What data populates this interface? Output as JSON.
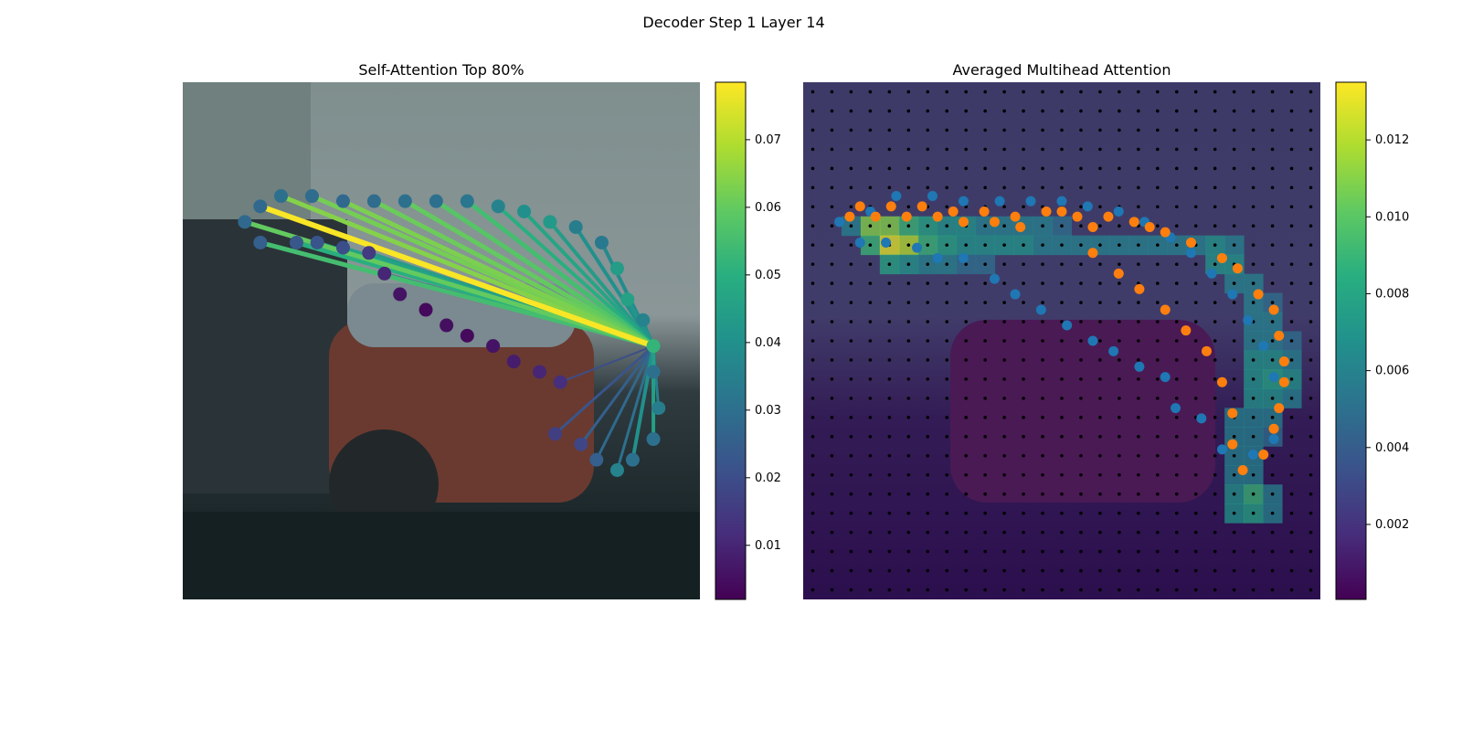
{
  "figure": {
    "title": "Decoder Step 1 Layer 14"
  },
  "chart_data": [
    {
      "type": "scatter",
      "title": "Self-Attention Top 80%",
      "description_points": "source/target points along a predicted lane curve; lines from query point to top-80% attended points",
      "query_point": [
        0.91,
        0.51
      ],
      "points": [
        {
          "x": 0.15,
          "y": 0.24,
          "v": 0.028
        },
        {
          "x": 0.19,
          "y": 0.22,
          "v": 0.03
        },
        {
          "x": 0.25,
          "y": 0.22,
          "v": 0.029
        },
        {
          "x": 0.31,
          "y": 0.23,
          "v": 0.028
        },
        {
          "x": 0.37,
          "y": 0.23,
          "v": 0.029
        },
        {
          "x": 0.43,
          "y": 0.23,
          "v": 0.03
        },
        {
          "x": 0.49,
          "y": 0.23,
          "v": 0.03
        },
        {
          "x": 0.55,
          "y": 0.23,
          "v": 0.032
        },
        {
          "x": 0.61,
          "y": 0.24,
          "v": 0.036
        },
        {
          "x": 0.66,
          "y": 0.25,
          "v": 0.04
        },
        {
          "x": 0.71,
          "y": 0.27,
          "v": 0.043
        },
        {
          "x": 0.76,
          "y": 0.28,
          "v": 0.034
        },
        {
          "x": 0.81,
          "y": 0.31,
          "v": 0.033
        },
        {
          "x": 0.84,
          "y": 0.36,
          "v": 0.044
        },
        {
          "x": 0.86,
          "y": 0.42,
          "v": 0.046
        },
        {
          "x": 0.89,
          "y": 0.46,
          "v": 0.036
        },
        {
          "x": 0.91,
          "y": 0.51,
          "v": 0.052
        },
        {
          "x": 0.91,
          "y": 0.56,
          "v": 0.03
        },
        {
          "x": 0.92,
          "y": 0.63,
          "v": 0.034
        },
        {
          "x": 0.91,
          "y": 0.69,
          "v": 0.03
        },
        {
          "x": 0.87,
          "y": 0.73,
          "v": 0.03
        },
        {
          "x": 0.84,
          "y": 0.75,
          "v": 0.036
        },
        {
          "x": 0.8,
          "y": 0.73,
          "v": 0.025
        },
        {
          "x": 0.77,
          "y": 0.7,
          "v": 0.018
        },
        {
          "x": 0.72,
          "y": 0.68,
          "v": 0.016
        },
        {
          "x": 0.73,
          "y": 0.58,
          "v": 0.012
        },
        {
          "x": 0.69,
          "y": 0.56,
          "v": 0.01
        },
        {
          "x": 0.64,
          "y": 0.54,
          "v": 0.008
        },
        {
          "x": 0.6,
          "y": 0.51,
          "v": 0.006
        },
        {
          "x": 0.55,
          "y": 0.49,
          "v": 0.004
        },
        {
          "x": 0.51,
          "y": 0.47,
          "v": 0.005
        },
        {
          "x": 0.47,
          "y": 0.44,
          "v": 0.004
        },
        {
          "x": 0.42,
          "y": 0.41,
          "v": 0.006
        },
        {
          "x": 0.39,
          "y": 0.37,
          "v": 0.01
        },
        {
          "x": 0.36,
          "y": 0.33,
          "v": 0.015
        },
        {
          "x": 0.31,
          "y": 0.32,
          "v": 0.02
        },
        {
          "x": 0.26,
          "y": 0.31,
          "v": 0.022
        },
        {
          "x": 0.22,
          "y": 0.31,
          "v": 0.023
        },
        {
          "x": 0.15,
          "y": 0.31,
          "v": 0.025
        },
        {
          "x": 0.12,
          "y": 0.27,
          "v": 0.028
        }
      ],
      "edges": [
        {
          "to": [
            0.15,
            0.24
          ],
          "v": 0.078,
          "w": 6
        },
        {
          "to": [
            0.19,
            0.22
          ],
          "v": 0.064,
          "w": 5
        },
        {
          "to": [
            0.25,
            0.22
          ],
          "v": 0.062,
          "w": 5
        },
        {
          "to": [
            0.31,
            0.23
          ],
          "v": 0.063,
          "w": 5
        },
        {
          "to": [
            0.37,
            0.23
          ],
          "v": 0.061,
          "w": 5
        },
        {
          "to": [
            0.43,
            0.23
          ],
          "v": 0.06,
          "w": 5
        },
        {
          "to": [
            0.49,
            0.23
          ],
          "v": 0.058,
          "w": 5
        },
        {
          "to": [
            0.55,
            0.23
          ],
          "v": 0.055,
          "w": 5
        },
        {
          "to": [
            0.61,
            0.24
          ],
          "v": 0.05,
          "w": 4
        },
        {
          "to": [
            0.66,
            0.25
          ],
          "v": 0.047,
          "w": 4
        },
        {
          "to": [
            0.71,
            0.27
          ],
          "v": 0.044,
          "w": 4
        },
        {
          "to": [
            0.76,
            0.28
          ],
          "v": 0.04,
          "w": 4
        },
        {
          "to": [
            0.81,
            0.31
          ],
          "v": 0.038,
          "w": 4
        },
        {
          "to": [
            0.86,
            0.42
          ],
          "v": 0.042,
          "w": 4
        },
        {
          "to": [
            0.89,
            0.46
          ],
          "v": 0.04,
          "w": 3
        },
        {
          "to": [
            0.15,
            0.31
          ],
          "v": 0.055,
          "w": 5
        },
        {
          "to": [
            0.22,
            0.31
          ],
          "v": 0.05,
          "w": 5
        },
        {
          "to": [
            0.26,
            0.31
          ],
          "v": 0.048,
          "w": 4
        },
        {
          "to": [
            0.31,
            0.32
          ],
          "v": 0.046,
          "w": 4
        },
        {
          "to": [
            0.36,
            0.33
          ],
          "v": 0.044,
          "w": 4
        },
        {
          "to": [
            0.12,
            0.27
          ],
          "v": 0.06,
          "w": 5
        },
        {
          "to": [
            0.91,
            0.56
          ],
          "v": 0.03,
          "w": 3
        },
        {
          "to": [
            0.92,
            0.63
          ],
          "v": 0.035,
          "w": 3
        },
        {
          "to": [
            0.91,
            0.69
          ],
          "v": 0.045,
          "w": 4
        },
        {
          "to": [
            0.87,
            0.73
          ],
          "v": 0.04,
          "w": 4
        },
        {
          "to": [
            0.84,
            0.75
          ],
          "v": 0.03,
          "w": 3
        },
        {
          "to": [
            0.8,
            0.73
          ],
          "v": 0.028,
          "w": 3
        },
        {
          "to": [
            0.77,
            0.7
          ],
          "v": 0.025,
          "w": 3
        },
        {
          "to": [
            0.72,
            0.68
          ],
          "v": 0.022,
          "w": 3
        },
        {
          "to": [
            0.73,
            0.58
          ],
          "v": 0.02,
          "w": 2
        },
        {
          "to": [
            0.39,
            0.37
          ],
          "v": 0.03,
          "w": 3
        }
      ],
      "colorbar": {
        "range": [
          0.002,
          0.0785
        ],
        "ticks": [
          0.01,
          0.02,
          0.03,
          0.04,
          0.05,
          0.06,
          0.07
        ],
        "tick_labels": [
          "0.01",
          "0.02",
          "0.03",
          "0.04",
          "0.05",
          "0.06",
          "0.07"
        ]
      }
    },
    {
      "type": "heatmap",
      "title": "Averaged Multihead Attention",
      "grid": [
        27,
        27
      ],
      "heat_cells": [
        {
          "r": 7,
          "c": 2,
          "v": 0.006
        },
        {
          "r": 7,
          "c": 3,
          "v": 0.011
        },
        {
          "r": 7,
          "c": 4,
          "v": 0.011
        },
        {
          "r": 7,
          "c": 5,
          "v": 0.009
        },
        {
          "r": 7,
          "c": 6,
          "v": 0.008
        },
        {
          "r": 7,
          "c": 7,
          "v": 0.007
        },
        {
          "r": 7,
          "c": 8,
          "v": 0.007
        },
        {
          "r": 7,
          "c": 9,
          "v": 0.006
        },
        {
          "r": 7,
          "c": 10,
          "v": 0.006
        },
        {
          "r": 7,
          "c": 11,
          "v": 0.006
        },
        {
          "r": 7,
          "c": 12,
          "v": 0.006
        },
        {
          "r": 7,
          "c": 13,
          "v": 0.005
        },
        {
          "r": 8,
          "c": 3,
          "v": 0.009
        },
        {
          "r": 8,
          "c": 4,
          "v": 0.013
        },
        {
          "r": 8,
          "c": 5,
          "v": 0.012
        },
        {
          "r": 8,
          "c": 6,
          "v": 0.009
        },
        {
          "r": 8,
          "c": 7,
          "v": 0.008
        },
        {
          "r": 8,
          "c": 8,
          "v": 0.007
        },
        {
          "r": 8,
          "c": 9,
          "v": 0.007
        },
        {
          "r": 8,
          "c": 10,
          "v": 0.007
        },
        {
          "r": 8,
          "c": 11,
          "v": 0.007
        },
        {
          "r": 8,
          "c": 12,
          "v": 0.006
        },
        {
          "r": 8,
          "c": 13,
          "v": 0.006
        },
        {
          "r": 8,
          "c": 14,
          "v": 0.006
        },
        {
          "r": 8,
          "c": 15,
          "v": 0.006
        },
        {
          "r": 8,
          "c": 16,
          "v": 0.006
        },
        {
          "r": 8,
          "c": 17,
          "v": 0.006
        },
        {
          "r": 8,
          "c": 18,
          "v": 0.006
        },
        {
          "r": 8,
          "c": 19,
          "v": 0.006
        },
        {
          "r": 8,
          "c": 20,
          "v": 0.006
        },
        {
          "r": 8,
          "c": 21,
          "v": 0.007
        },
        {
          "r": 8,
          "c": 22,
          "v": 0.006
        },
        {
          "r": 9,
          "c": 4,
          "v": 0.008
        },
        {
          "r": 9,
          "c": 5,
          "v": 0.007
        },
        {
          "r": 9,
          "c": 6,
          "v": 0.006
        },
        {
          "r": 9,
          "c": 7,
          "v": 0.006
        },
        {
          "r": 9,
          "c": 8,
          "v": 0.005
        },
        {
          "r": 9,
          "c": 9,
          "v": 0.005
        },
        {
          "r": 9,
          "c": 21,
          "v": 0.007
        },
        {
          "r": 9,
          "c": 22,
          "v": 0.007
        },
        {
          "r": 10,
          "c": 22,
          "v": 0.006
        },
        {
          "r": 10,
          "c": 23,
          "v": 0.006
        },
        {
          "r": 11,
          "c": 23,
          "v": 0.006
        },
        {
          "r": 11,
          "c": 24,
          "v": 0.005
        },
        {
          "r": 12,
          "c": 23,
          "v": 0.006
        },
        {
          "r": 12,
          "c": 24,
          "v": 0.006
        },
        {
          "r": 13,
          "c": 23,
          "v": 0.006
        },
        {
          "r": 13,
          "c": 24,
          "v": 0.006
        },
        {
          "r": 13,
          "c": 25,
          "v": 0.005
        },
        {
          "r": 14,
          "c": 23,
          "v": 0.007
        },
        {
          "r": 14,
          "c": 24,
          "v": 0.007
        },
        {
          "r": 14,
          "c": 25,
          "v": 0.006
        },
        {
          "r": 15,
          "c": 23,
          "v": 0.007
        },
        {
          "r": 15,
          "c": 24,
          "v": 0.008
        },
        {
          "r": 15,
          "c": 25,
          "v": 0.007
        },
        {
          "r": 16,
          "c": 23,
          "v": 0.007
        },
        {
          "r": 16,
          "c": 24,
          "v": 0.007
        },
        {
          "r": 16,
          "c": 25,
          "v": 0.006
        },
        {
          "r": 17,
          "c": 22,
          "v": 0.006
        },
        {
          "r": 17,
          "c": 23,
          "v": 0.006
        },
        {
          "r": 17,
          "c": 24,
          "v": 0.006
        },
        {
          "r": 18,
          "c": 22,
          "v": 0.006
        },
        {
          "r": 18,
          "c": 23,
          "v": 0.006
        },
        {
          "r": 18,
          "c": 24,
          "v": 0.005
        },
        {
          "r": 19,
          "c": 22,
          "v": 0.006
        },
        {
          "r": 19,
          "c": 23,
          "v": 0.006
        },
        {
          "r": 20,
          "c": 22,
          "v": 0.006
        },
        {
          "r": 20,
          "c": 23,
          "v": 0.006
        },
        {
          "r": 21,
          "c": 22,
          "v": 0.007
        },
        {
          "r": 21,
          "c": 23,
          "v": 0.009
        },
        {
          "r": 21,
          "c": 24,
          "v": 0.006
        },
        {
          "r": 22,
          "c": 22,
          "v": 0.007
        },
        {
          "r": 22,
          "c": 23,
          "v": 0.008
        },
        {
          "r": 22,
          "c": 24,
          "v": 0.006
        }
      ],
      "blue_points": [
        [
          0.13,
          0.25
        ],
        [
          0.18,
          0.22
        ],
        [
          0.25,
          0.22
        ],
        [
          0.31,
          0.23
        ],
        [
          0.38,
          0.23
        ],
        [
          0.44,
          0.23
        ],
        [
          0.5,
          0.23
        ],
        [
          0.55,
          0.24
        ],
        [
          0.61,
          0.25
        ],
        [
          0.66,
          0.27
        ],
        [
          0.71,
          0.3
        ],
        [
          0.75,
          0.33
        ],
        [
          0.79,
          0.37
        ],
        [
          0.83,
          0.41
        ],
        [
          0.86,
          0.46
        ],
        [
          0.89,
          0.51
        ],
        [
          0.91,
          0.57
        ],
        [
          0.92,
          0.63
        ],
        [
          0.91,
          0.69
        ],
        [
          0.87,
          0.72
        ],
        [
          0.81,
          0.71
        ],
        [
          0.77,
          0.65
        ],
        [
          0.72,
          0.63
        ],
        [
          0.7,
          0.57
        ],
        [
          0.65,
          0.55
        ],
        [
          0.6,
          0.52
        ],
        [
          0.56,
          0.5
        ],
        [
          0.51,
          0.47
        ],
        [
          0.46,
          0.44
        ],
        [
          0.41,
          0.41
        ],
        [
          0.37,
          0.38
        ],
        [
          0.31,
          0.34
        ],
        [
          0.26,
          0.34
        ],
        [
          0.22,
          0.32
        ],
        [
          0.16,
          0.31
        ],
        [
          0.11,
          0.31
        ],
        [
          0.07,
          0.27
        ]
      ],
      "orange_points": [
        [
          0.09,
          0.26
        ],
        [
          0.11,
          0.24
        ],
        [
          0.14,
          0.26
        ],
        [
          0.17,
          0.24
        ],
        [
          0.2,
          0.26
        ],
        [
          0.23,
          0.24
        ],
        [
          0.26,
          0.26
        ],
        [
          0.29,
          0.25
        ],
        [
          0.31,
          0.27
        ],
        [
          0.35,
          0.25
        ],
        [
          0.37,
          0.27
        ],
        [
          0.41,
          0.26
        ],
        [
          0.42,
          0.28
        ],
        [
          0.47,
          0.25
        ],
        [
          0.5,
          0.25
        ],
        [
          0.53,
          0.26
        ],
        [
          0.56,
          0.28
        ],
        [
          0.59,
          0.26
        ],
        [
          0.64,
          0.27
        ],
        [
          0.67,
          0.28
        ],
        [
          0.7,
          0.29
        ],
        [
          0.75,
          0.31
        ],
        [
          0.81,
          0.34
        ],
        [
          0.84,
          0.36
        ],
        [
          0.88,
          0.41
        ],
        [
          0.91,
          0.44
        ],
        [
          0.92,
          0.49
        ],
        [
          0.93,
          0.54
        ],
        [
          0.93,
          0.58
        ],
        [
          0.92,
          0.63
        ],
        [
          0.91,
          0.67
        ],
        [
          0.89,
          0.72
        ],
        [
          0.85,
          0.75
        ],
        [
          0.83,
          0.7
        ],
        [
          0.83,
          0.64
        ],
        [
          0.81,
          0.58
        ],
        [
          0.78,
          0.52
        ],
        [
          0.74,
          0.48
        ],
        [
          0.7,
          0.44
        ],
        [
          0.65,
          0.4
        ],
        [
          0.61,
          0.37
        ],
        [
          0.56,
          0.33
        ]
      ],
      "colorbar": {
        "range": [
          5e-05,
          0.0135
        ],
        "ticks": [
          0.002,
          0.004,
          0.006,
          0.008,
          0.01,
          0.012
        ],
        "tick_labels": [
          "0.002",
          "0.004",
          "0.006",
          "0.008",
          "0.010",
          "0.012"
        ]
      }
    }
  ]
}
